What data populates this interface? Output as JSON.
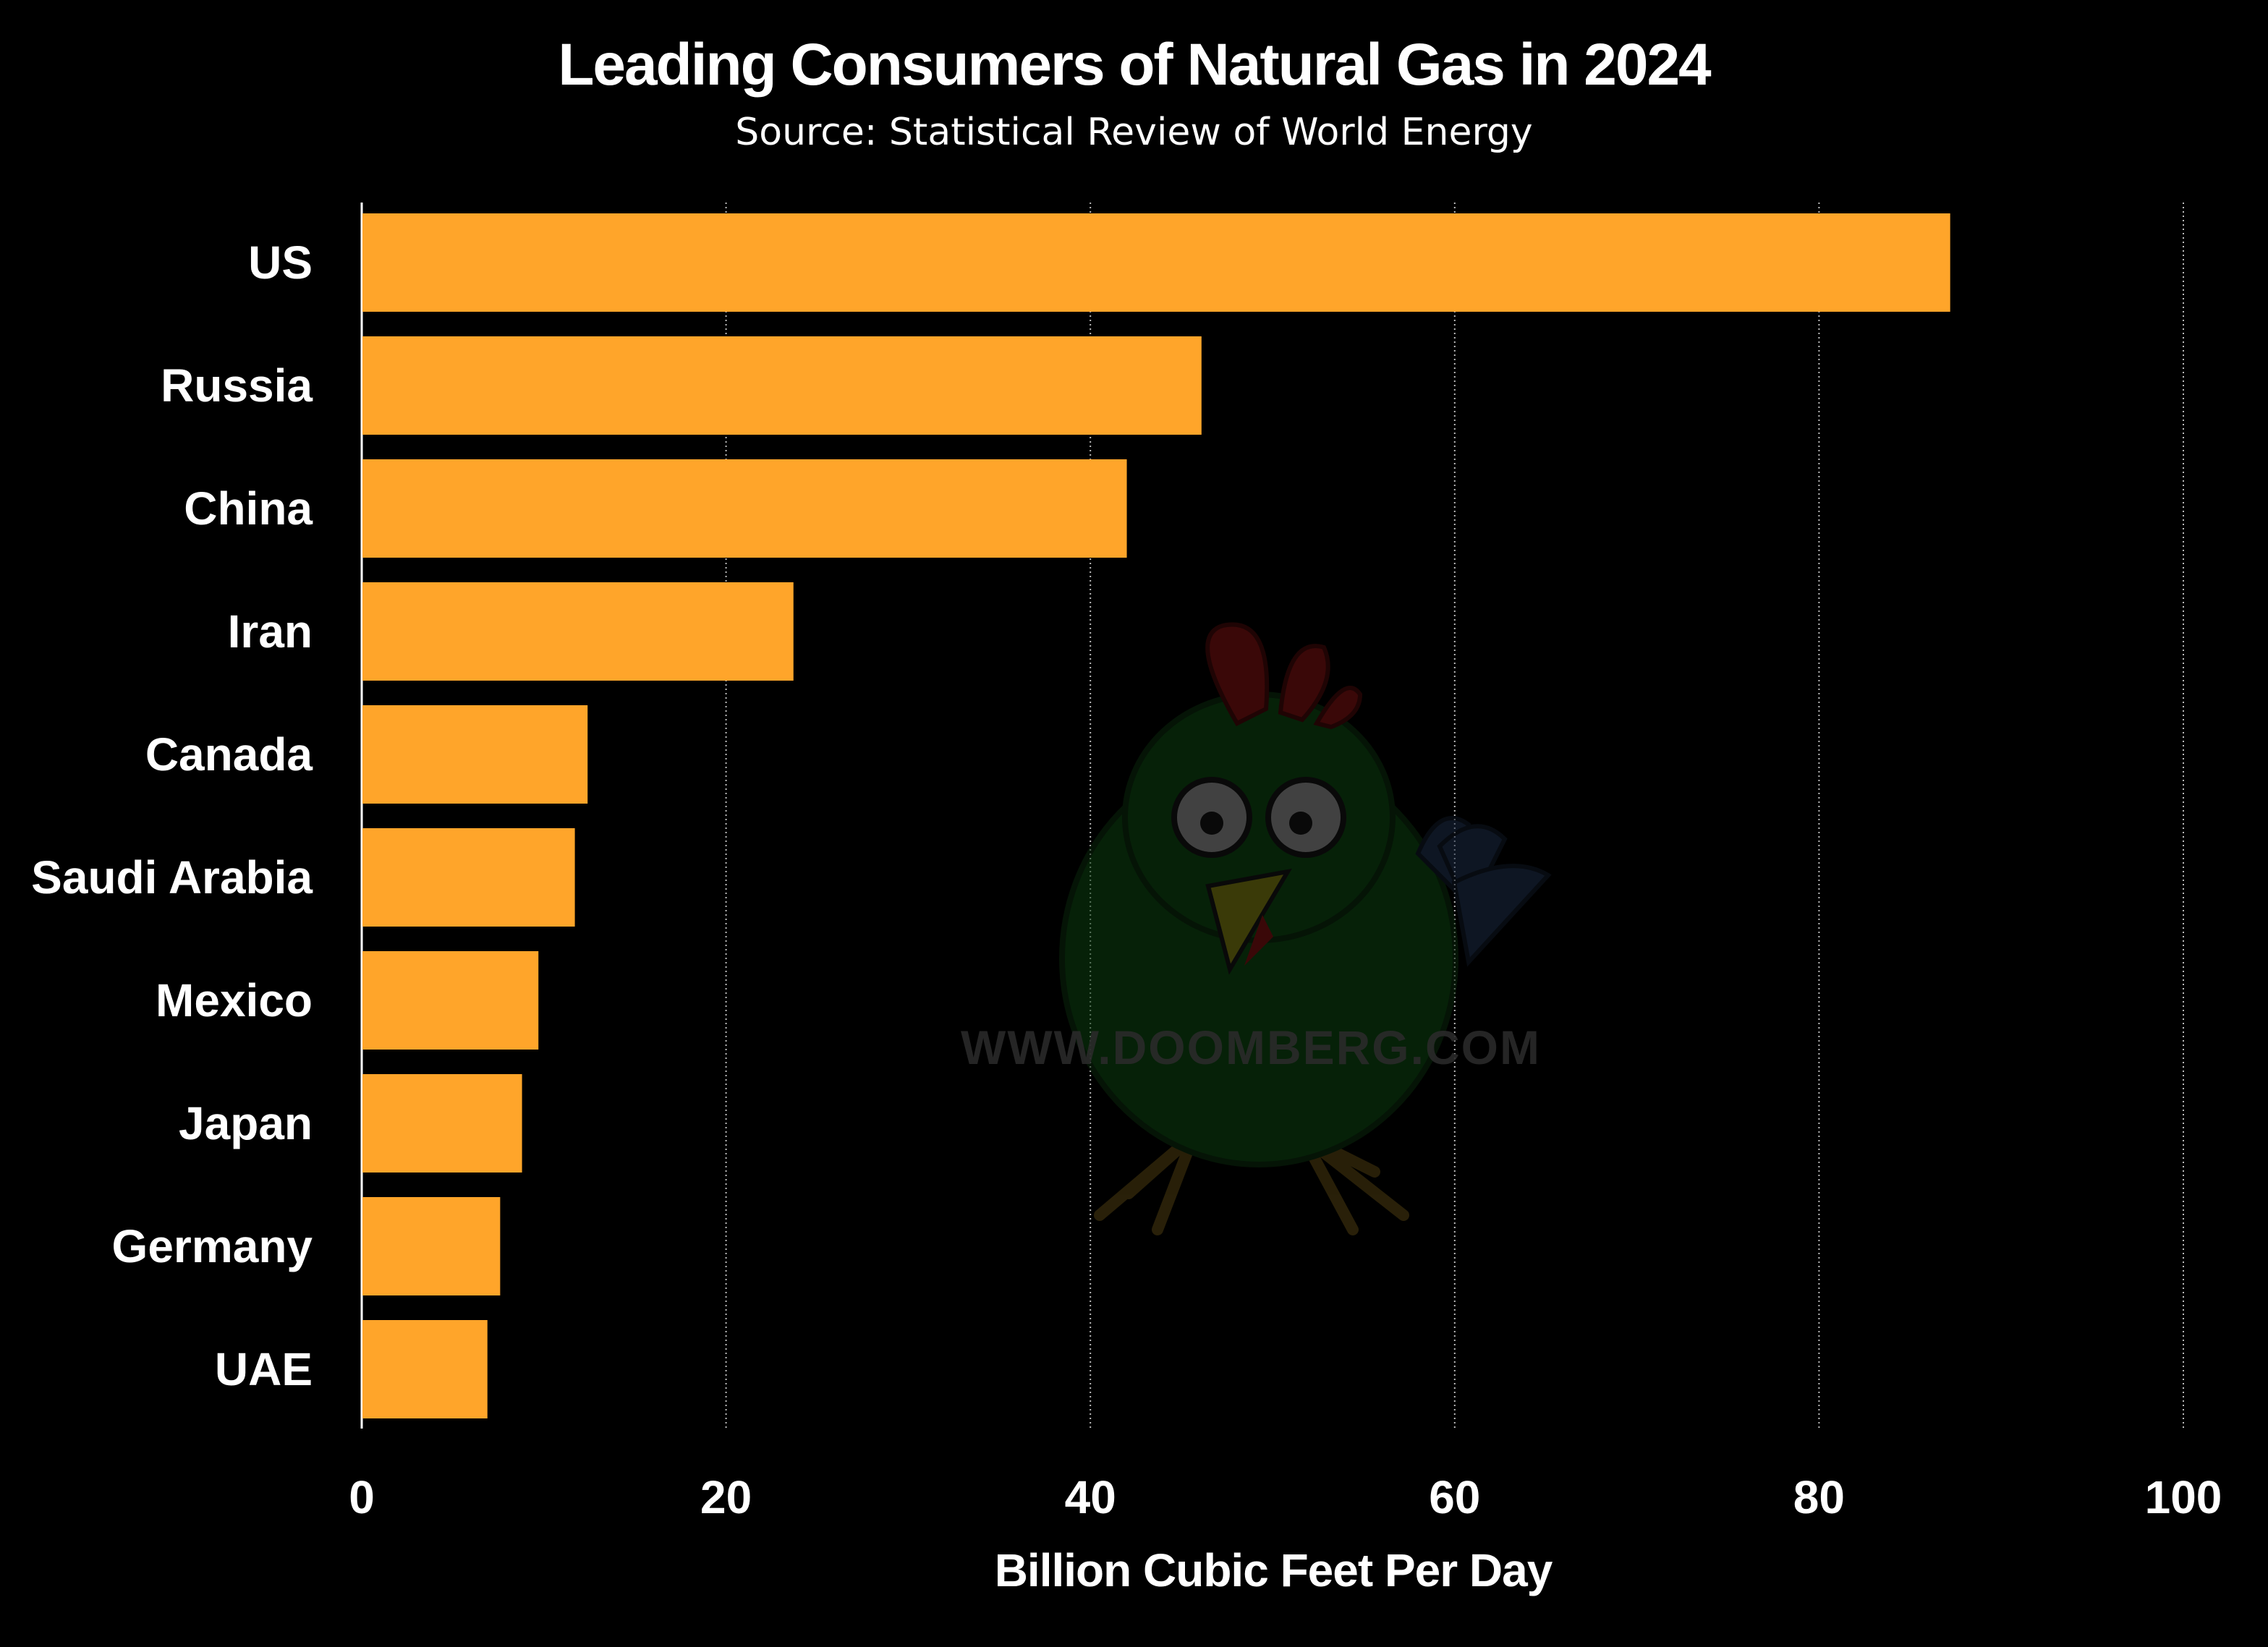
{
  "chart_data": {
    "type": "bar",
    "orientation": "horizontal",
    "title": "Leading Consumers of Natural Gas in 2024",
    "subtitle": "Source: Statistical Review of World Energy",
    "xlabel": "Billion Cubic Feet Per Day",
    "ylabel": "",
    "categories": [
      "US",
      "Russia",
      "China",
      "Iran",
      "Canada",
      "Saudi Arabia",
      "Mexico",
      "Japan",
      "Germany",
      "UAE"
    ],
    "values": [
      87.2,
      46.1,
      42.0,
      23.7,
      12.4,
      11.7,
      9.7,
      8.8,
      7.6,
      6.9
    ],
    "xlim": [
      0,
      100
    ],
    "xticks": [
      "0",
      "20",
      "40",
      "60",
      "80",
      "100"
    ],
    "tick_values": [
      0,
      20,
      40,
      60,
      80,
      100
    ],
    "grid": "vertical dotted",
    "legend": "none",
    "bar_color": "#ffa52a",
    "background": "#000000"
  },
  "watermark": {
    "text": "WWW.DOOMBERG.COM",
    "icon": "doomberg-chicken-mascot-icon"
  }
}
